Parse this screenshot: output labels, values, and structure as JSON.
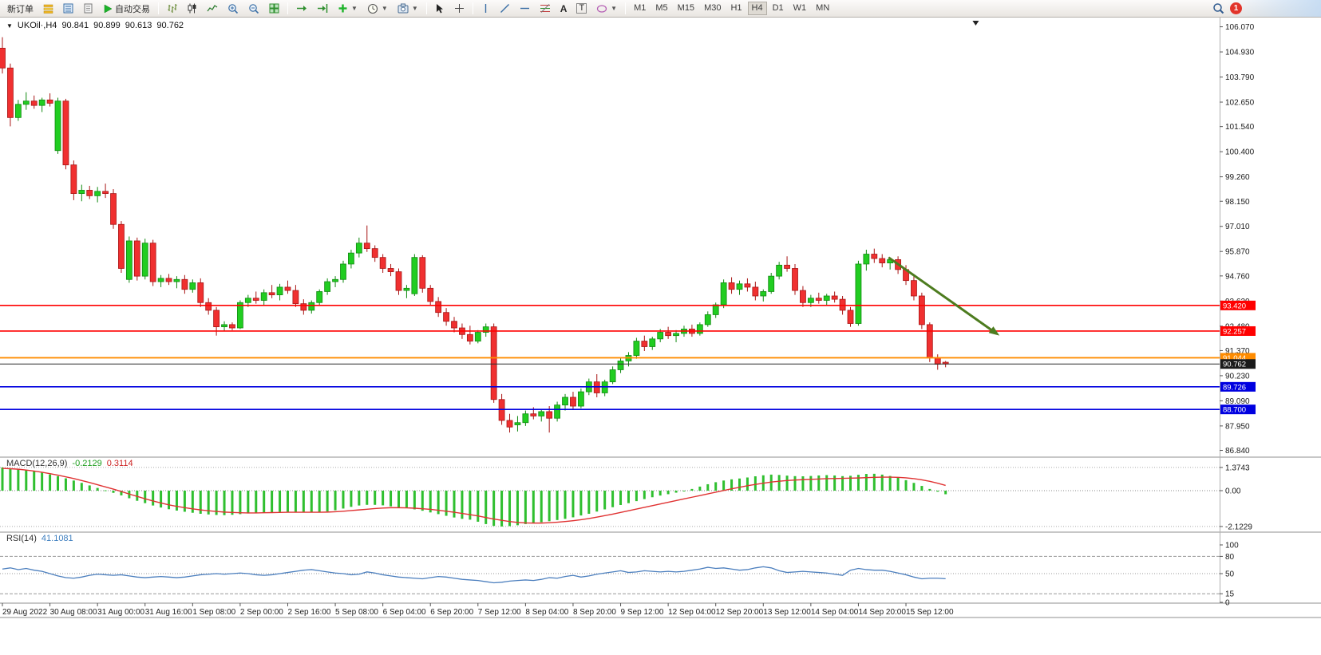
{
  "toolbar": {
    "new_order": "新订单",
    "algo_trading": "自动交易",
    "text_tool": "A",
    "label_tool": "T",
    "timeframes": [
      "M1",
      "M5",
      "M15",
      "M30",
      "H1",
      "H4",
      "D1",
      "W1",
      "MN"
    ],
    "active_timeframe": "H4",
    "notification_count": "1"
  },
  "chart": {
    "symbol_label": "UKOil·,H4",
    "open": "90.841",
    "high": "90.899",
    "low": "90.613",
    "close": "90.762"
  },
  "macd_panel": {
    "title": "MACD(12,26,9)",
    "main": "-0.2129",
    "signal": "0.3114"
  },
  "rsi_panel": {
    "title": "RSI(14)",
    "value": "41.1081"
  },
  "colors": {
    "bull": "#21cd21",
    "bull_stroke": "#128a12",
    "bear": "#f03030",
    "bear_stroke": "#a81616",
    "macd_hist": "#2fbf2f",
    "macd_signal": "#e03232",
    "rsi_line": "#4c7fbe",
    "arrow": "#4d7c1f",
    "line_red": "#ff0000",
    "line_orange": "#ff8c00",
    "line_blue": "#0000e0",
    "current_tag": "#1a1a1a"
  },
  "chart_data": {
    "type": "candlestick",
    "symbol": "UKOil",
    "timeframe": "H4",
    "title": "UKOil H4 with MACD(12,26,9) and RSI(14)",
    "ylim": [
      86.84,
      106.07
    ],
    "grid": false,
    "price_axis": [
      "106.070",
      "104.930",
      "103.790",
      "102.650",
      "101.540",
      "100.400",
      "99.260",
      "98.150",
      "97.010",
      "95.870",
      "94.760",
      "93.620",
      "92.480",
      "91.370",
      "90.230",
      "89.090",
      "87.950",
      "86.840"
    ],
    "time_axis": [
      "29 Aug 2022",
      "30 Aug 08:00",
      "31 Aug 00:00",
      "31 Aug 16:00",
      "1 Sep 08:00",
      "2 Sep 00:00",
      "2 Sep 16:00",
      "5 Sep 08:00",
      "6 Sep 04:00",
      "6 Sep 20:00",
      "7 Sep 12:00",
      "8 Sep 04:00",
      "8 Sep 20:00",
      "9 Sep 12:00",
      "12 Sep 04:00",
      "12 Sep 20:00",
      "13 Sep 12:00",
      "14 Sep 04:00",
      "14 Sep 20:00",
      "15 Sep 12:00"
    ],
    "candles": [
      [
        105.1,
        105.6,
        103.95,
        104.2
      ],
      [
        104.2,
        104.4,
        101.55,
        101.95
      ],
      [
        101.95,
        102.75,
        101.8,
        102.55
      ],
      [
        102.55,
        103.1,
        102.3,
        102.7
      ],
      [
        102.7,
        102.95,
        102.35,
        102.5
      ],
      [
        102.5,
        102.85,
        102.2,
        102.75
      ],
      [
        102.75,
        103.05,
        102.45,
        102.6
      ],
      [
        100.45,
        102.85,
        100.3,
        102.7
      ],
      [
        102.7,
        102.8,
        99.6,
        99.8
      ],
      [
        99.8,
        100.0,
        98.2,
        98.5
      ],
      [
        98.5,
        98.9,
        98.15,
        98.65
      ],
      [
        98.65,
        98.85,
        98.25,
        98.4
      ],
      [
        98.4,
        98.8,
        98.1,
        98.6
      ],
      [
        98.6,
        98.95,
        98.3,
        98.5
      ],
      [
        98.5,
        98.7,
        96.9,
        97.1
      ],
      [
        97.1,
        97.25,
        94.9,
        95.1
      ],
      [
        94.6,
        96.55,
        94.45,
        96.35
      ],
      [
        96.35,
        96.5,
        94.55,
        94.75
      ],
      [
        94.75,
        96.45,
        94.6,
        96.25
      ],
      [
        96.25,
        96.4,
        94.3,
        94.5
      ],
      [
        94.5,
        94.8,
        94.25,
        94.65
      ],
      [
        94.65,
        94.85,
        94.35,
        94.5
      ],
      [
        94.5,
        94.75,
        94.2,
        94.6
      ],
      [
        94.6,
        94.8,
        93.95,
        94.15
      ],
      [
        94.15,
        94.6,
        94.0,
        94.45
      ],
      [
        94.45,
        94.65,
        93.35,
        93.55
      ],
      [
        93.55,
        93.75,
        93.0,
        93.2
      ],
      [
        93.2,
        93.35,
        92.05,
        92.45
      ],
      [
        92.45,
        92.7,
        92.25,
        92.55
      ],
      [
        92.55,
        92.65,
        92.3,
        92.4
      ],
      [
        92.4,
        93.65,
        92.35,
        93.55
      ],
      [
        93.55,
        93.9,
        93.35,
        93.75
      ],
      [
        93.75,
        94.05,
        93.5,
        93.65
      ],
      [
        93.65,
        94.15,
        93.45,
        94.0
      ],
      [
        94.0,
        94.35,
        93.75,
        93.9
      ],
      [
        93.9,
        94.4,
        93.65,
        94.25
      ],
      [
        94.25,
        94.55,
        93.95,
        94.1
      ],
      [
        94.1,
        94.35,
        93.35,
        93.5
      ],
      [
        93.5,
        93.7,
        93.0,
        93.2
      ],
      [
        93.2,
        93.65,
        93.05,
        93.55
      ],
      [
        93.55,
        94.15,
        93.45,
        94.05
      ],
      [
        94.05,
        94.65,
        93.9,
        94.5
      ],
      [
        94.5,
        94.75,
        94.25,
        94.6
      ],
      [
        94.6,
        95.45,
        94.45,
        95.3
      ],
      [
        95.3,
        95.95,
        95.1,
        95.8
      ],
      [
        95.8,
        96.5,
        95.6,
        96.25
      ],
      [
        96.25,
        97.05,
        95.85,
        96.0
      ],
      [
        96.0,
        96.15,
        95.4,
        95.6
      ],
      [
        95.6,
        95.75,
        94.9,
        95.1
      ],
      [
        95.1,
        95.3,
        94.75,
        94.95
      ],
      [
        94.95,
        95.1,
        93.9,
        94.1
      ],
      [
        94.1,
        94.35,
        93.75,
        94.2
      ],
      [
        93.95,
        95.75,
        93.85,
        95.6
      ],
      [
        95.6,
        95.7,
        94.0,
        94.2
      ],
      [
        94.2,
        94.35,
        93.4,
        93.6
      ],
      [
        93.6,
        93.8,
        92.9,
        93.1
      ],
      [
        93.1,
        93.3,
        92.5,
        92.7
      ],
      [
        92.7,
        92.9,
        92.2,
        92.4
      ],
      [
        92.4,
        92.6,
        91.9,
        92.1
      ],
      [
        92.1,
        92.5,
        91.65,
        91.8
      ],
      [
        91.8,
        92.3,
        91.7,
        92.2
      ],
      [
        92.2,
        92.6,
        92.0,
        92.45
      ],
      [
        92.45,
        92.6,
        89.0,
        89.15
      ],
      [
        89.15,
        89.4,
        88.0,
        88.2
      ],
      [
        88.2,
        88.5,
        87.65,
        87.9
      ],
      [
        88.0,
        88.4,
        87.7,
        88.1
      ],
      [
        88.1,
        88.65,
        87.95,
        88.5
      ],
      [
        88.5,
        88.8,
        88.25,
        88.4
      ],
      [
        88.4,
        88.7,
        88.15,
        88.6
      ],
      [
        88.6,
        88.85,
        87.65,
        88.3
      ],
      [
        88.3,
        89.05,
        88.15,
        88.9
      ],
      [
        88.9,
        89.4,
        88.65,
        89.25
      ],
      [
        89.25,
        89.5,
        88.7,
        88.85
      ],
      [
        88.85,
        89.65,
        88.75,
        89.5
      ],
      [
        89.5,
        90.1,
        89.35,
        89.95
      ],
      [
        89.95,
        90.3,
        89.25,
        89.45
      ],
      [
        89.45,
        90.05,
        89.3,
        89.95
      ],
      [
        89.95,
        90.65,
        89.85,
        90.5
      ],
      [
        90.5,
        91.05,
        90.35,
        90.9
      ],
      [
        90.9,
        91.3,
        90.65,
        91.15
      ],
      [
        91.15,
        91.95,
        91.0,
        91.8
      ],
      [
        91.8,
        92.05,
        91.35,
        91.55
      ],
      [
        91.55,
        92.0,
        91.4,
        91.9
      ],
      [
        91.9,
        92.35,
        91.75,
        92.2
      ],
      [
        92.2,
        92.45,
        91.9,
        92.05
      ],
      [
        92.05,
        92.3,
        91.75,
        92.15
      ],
      [
        92.15,
        92.5,
        92.0,
        92.35
      ],
      [
        92.35,
        92.55,
        92.0,
        92.15
      ],
      [
        92.15,
        92.65,
        92.05,
        92.55
      ],
      [
        92.55,
        93.15,
        92.45,
        93.0
      ],
      [
        93.0,
        93.55,
        92.85,
        93.45
      ],
      [
        93.45,
        94.6,
        93.3,
        94.45
      ],
      [
        94.45,
        94.7,
        93.95,
        94.15
      ],
      [
        94.15,
        94.55,
        93.9,
        94.4
      ],
      [
        94.4,
        94.65,
        94.05,
        94.25
      ],
      [
        94.25,
        94.5,
        93.65,
        93.85
      ],
      [
        93.85,
        94.15,
        93.6,
        94.05
      ],
      [
        94.05,
        94.9,
        93.95,
        94.75
      ],
      [
        94.75,
        95.4,
        94.6,
        95.25
      ],
      [
        95.25,
        95.65,
        94.95,
        95.1
      ],
      [
        95.1,
        95.3,
        93.9,
        94.1
      ],
      [
        94.1,
        94.3,
        93.35,
        93.55
      ],
      [
        93.55,
        93.9,
        93.35,
        93.75
      ],
      [
        93.75,
        94.0,
        93.5,
        93.65
      ],
      [
        93.65,
        93.95,
        93.45,
        93.85
      ],
      [
        93.85,
        94.05,
        93.55,
        93.7
      ],
      [
        93.7,
        93.85,
        93.0,
        93.2
      ],
      [
        93.2,
        93.35,
        92.45,
        92.6
      ],
      [
        92.6,
        95.45,
        92.5,
        95.3
      ],
      [
        95.3,
        95.95,
        95.0,
        95.75
      ],
      [
        95.75,
        96.0,
        95.35,
        95.55
      ],
      [
        95.55,
        95.75,
        95.15,
        95.35
      ],
      [
        95.35,
        95.6,
        95.05,
        95.5
      ],
      [
        95.5,
        95.65,
        94.85,
        95.05
      ],
      [
        95.05,
        95.25,
        94.35,
        94.55
      ],
      [
        94.55,
        94.75,
        93.65,
        93.85
      ],
      [
        93.85,
        94.0,
        92.35,
        92.55
      ],
      [
        92.55,
        92.65,
        90.85,
        91.05
      ],
      [
        91.05,
        91.2,
        90.5,
        90.75
      ],
      [
        90.841,
        90.899,
        90.613,
        90.762
      ]
    ],
    "hlines": [
      {
        "name": "resistance-line-1",
        "price": 93.42,
        "label": "93.420",
        "color": "#ff0000",
        "width": 1.6
      },
      {
        "name": "resistance-line-2",
        "price": 92.257,
        "label": "92.257",
        "color": "#ff0000",
        "width": 1.6
      },
      {
        "name": "support-line-orange",
        "price": 91.044,
        "label": "91.044",
        "color": "#ff8c00",
        "width": 1.8
      },
      {
        "name": "current-price-line",
        "price": 90.762,
        "label": "90.762",
        "color": "#2b2b2b",
        "width": 1,
        "current": true
      },
      {
        "name": "support-line-blue-1",
        "price": 89.726,
        "label": "89.726",
        "color": "#0000e0",
        "width": 1.6
      },
      {
        "name": "support-line-blue-2",
        "price": 88.7,
        "label": "88.700",
        "color": "#0000e0",
        "width": 1.6
      }
    ],
    "trend_arrow": {
      "bar_from": 111.8,
      "price_from": 95.6,
      "bar_to": 125.8,
      "price_to": 92.05,
      "color": "#4d7c1f"
    },
    "top_marker": {
      "bar": 122.8
    },
    "macd": {
      "label": "MACD(12,26,9)",
      "value_main": "-0.2129",
      "value_signal": "0.3114",
      "scale": {
        "max": 1.3743,
        "zero": 0.0,
        "min": -2.1229
      },
      "scale_labels": [
        "1.3743",
        "0.00",
        "-2.1229"
      ],
      "histogram": [
        1.3743,
        1.3,
        1.27,
        1.22,
        1.15,
        1.06,
        0.96,
        0.86,
        0.73,
        0.6,
        0.46,
        0.31,
        0.16,
        0.02,
        -0.13,
        -0.28,
        -0.45,
        -0.6,
        -0.74,
        -0.88,
        -1.0,
        -1.1,
        -1.18,
        -1.25,
        -1.31,
        -1.37,
        -1.41,
        -1.44,
        -1.45,
        -1.43,
        -1.39,
        -1.35,
        -1.32,
        -1.3,
        -1.28,
        -1.26,
        -1.25,
        -1.27,
        -1.29,
        -1.3,
        -1.28,
        -1.23,
        -1.16,
        -1.06,
        -0.96,
        -0.88,
        -0.84,
        -0.84,
        -0.87,
        -0.93,
        -0.99,
        -1.04,
        -1.11,
        -1.19,
        -1.29,
        -1.39,
        -1.49,
        -1.59,
        -1.67,
        -1.72,
        -1.84,
        -1.98,
        -2.09,
        -2.1229,
        -2.1,
        -2.05,
        -1.98,
        -1.92,
        -1.87,
        -1.81,
        -1.74,
        -1.67,
        -1.58,
        -1.47,
        -1.37,
        -1.24,
        -1.11,
        -0.98,
        -0.85,
        -0.74,
        -0.62,
        -0.5,
        -0.39,
        -0.29,
        -0.21,
        -0.12,
        -0.02,
        0.1,
        0.24,
        0.38,
        0.5,
        0.6,
        0.67,
        0.72,
        0.78,
        0.85,
        0.91,
        0.95,
        0.93,
        0.89,
        0.86,
        0.85,
        0.87,
        0.9,
        0.92,
        0.9,
        0.86,
        0.88,
        0.94,
        0.99,
        1.0,
        0.95,
        0.87,
        0.77,
        0.62,
        0.46,
        0.28,
        0.1,
        -0.06,
        -0.2129
      ],
      "signal": [
        1.32,
        1.3,
        1.27,
        1.22,
        1.16,
        1.09,
        1.01,
        0.92,
        0.82,
        0.72,
        0.6,
        0.48,
        0.35,
        0.22,
        0.09,
        -0.05,
        -0.2,
        -0.34,
        -0.48,
        -0.61,
        -0.73,
        -0.84,
        -0.93,
        -1.01,
        -1.08,
        -1.14,
        -1.19,
        -1.23,
        -1.27,
        -1.29,
        -1.31,
        -1.32,
        -1.32,
        -1.31,
        -1.3,
        -1.29,
        -1.28,
        -1.28,
        -1.28,
        -1.28,
        -1.28,
        -1.27,
        -1.25,
        -1.22,
        -1.18,
        -1.14,
        -1.1,
        -1.06,
        -1.03,
        -1.01,
        -1.01,
        -1.02,
        -1.04,
        -1.07,
        -1.11,
        -1.16,
        -1.22,
        -1.28,
        -1.35,
        -1.42,
        -1.5,
        -1.59,
        -1.68,
        -1.76,
        -1.83,
        -1.88,
        -1.91,
        -1.92,
        -1.92,
        -1.9,
        -1.87,
        -1.83,
        -1.78,
        -1.72,
        -1.65,
        -1.57,
        -1.48,
        -1.39,
        -1.29,
        -1.19,
        -1.09,
        -0.99,
        -0.89,
        -0.79,
        -0.69,
        -0.59,
        -0.49,
        -0.39,
        -0.29,
        -0.19,
        -0.09,
        0.01,
        0.11,
        0.2,
        0.29,
        0.37,
        0.44,
        0.51,
        0.56,
        0.6,
        0.63,
        0.65,
        0.67,
        0.69,
        0.71,
        0.72,
        0.73,
        0.74,
        0.75,
        0.77,
        0.79,
        0.8,
        0.8,
        0.79,
        0.76,
        0.71,
        0.64,
        0.55,
        0.44,
        0.3114
      ]
    },
    "rsi": {
      "label": "RSI(14)",
      "value": "41.1081",
      "levels": [
        80,
        50,
        15
      ],
      "scale_labels": [
        "100",
        "80",
        "50",
        "15",
        "0"
      ],
      "values": [
        58,
        60,
        57,
        59,
        56,
        54,
        50,
        46,
        43,
        42,
        44,
        47,
        49,
        48,
        47,
        48,
        46,
        44,
        43,
        44,
        45,
        44,
        43,
        44,
        46,
        48,
        49,
        50,
        49,
        50,
        51,
        50,
        48,
        47,
        48,
        50,
        52,
        54,
        56,
        57,
        55,
        53,
        51,
        50,
        48,
        49,
        53,
        51,
        48,
        46,
        44,
        43,
        42,
        41,
        43,
        45,
        44,
        42,
        40,
        39,
        38,
        36,
        34,
        35,
        37,
        38,
        39,
        38,
        40,
        43,
        42,
        45,
        47,
        44,
        46,
        49,
        51,
        53,
        55,
        52,
        53,
        55,
        54,
        53,
        54,
        53,
        54,
        56,
        58,
        61,
        59,
        60,
        58,
        56,
        57,
        60,
        62,
        60,
        55,
        52,
        53,
        54,
        53,
        52,
        51,
        49,
        47,
        56,
        59,
        57,
        56,
        56,
        54,
        51,
        48,
        44,
        41,
        42,
        42,
        41.1081
      ]
    }
  }
}
